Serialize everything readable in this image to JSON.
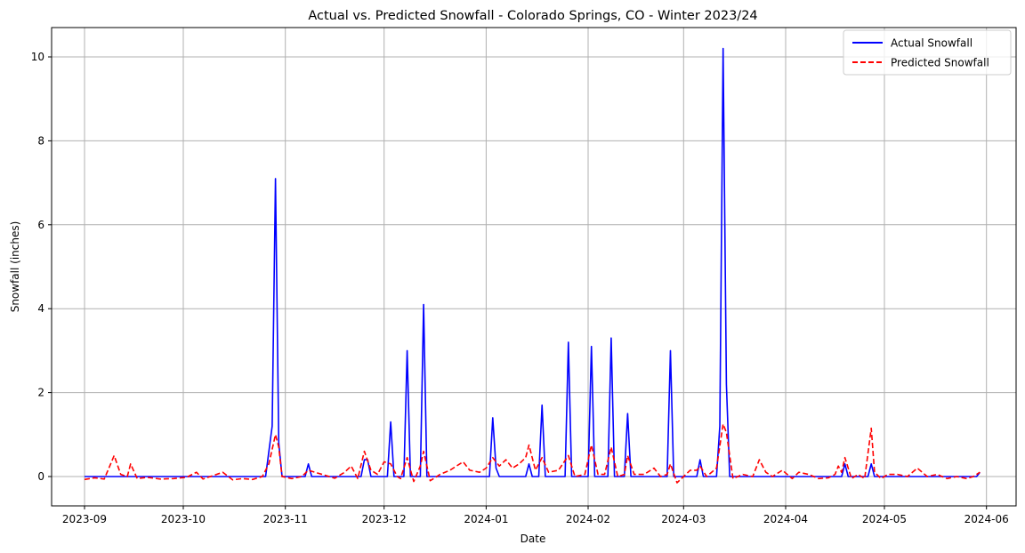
{
  "chart_data": {
    "type": "line",
    "title": "Actual vs. Predicted Snowfall - Colorado Springs, CO - Winter 2023/24",
    "xlabel": "Date",
    "ylabel": "Snowfall (inches)",
    "xlim": [
      "2023-08-22",
      "2024-06-10"
    ],
    "ylim": [
      -0.7,
      10.7
    ],
    "grid": true,
    "legend_position": "top-right",
    "x_ticks": [
      "2023-09",
      "2023-10",
      "2023-11",
      "2023-12",
      "2024-01",
      "2024-02",
      "2024-03",
      "2024-04",
      "2024-05",
      "2024-06"
    ],
    "y_ticks": [
      0,
      2,
      4,
      6,
      8,
      10
    ],
    "series": [
      {
        "name": "Actual Snowfall",
        "color": "#0000ff",
        "style": "solid",
        "points": [
          [
            "2023-09-01",
            0
          ],
          [
            "2023-10-26",
            0
          ],
          [
            "2023-10-28",
            1.2
          ],
          [
            "2023-10-29",
            7.1
          ],
          [
            "2023-10-30",
            0.8
          ],
          [
            "2023-10-31",
            0
          ],
          [
            "2023-11-07",
            0
          ],
          [
            "2023-11-08",
            0.3
          ],
          [
            "2023-11-09",
            0
          ],
          [
            "2023-11-24",
            0
          ],
          [
            "2023-11-25",
            0.4
          ],
          [
            "2023-11-26",
            0.4
          ],
          [
            "2023-11-27",
            0
          ],
          [
            "2023-12-02",
            0
          ],
          [
            "2023-12-03",
            1.3
          ],
          [
            "2023-12-04",
            0
          ],
          [
            "2023-12-07",
            0
          ],
          [
            "2023-12-08",
            3.0
          ],
          [
            "2023-12-09",
            0
          ],
          [
            "2023-12-12",
            0
          ],
          [
            "2023-12-13",
            4.1
          ],
          [
            "2023-12-14",
            0
          ],
          [
            "2024-01-02",
            0
          ],
          [
            "2024-01-03",
            1.4
          ],
          [
            "2024-01-04",
            0.2
          ],
          [
            "2024-01-05",
            0
          ],
          [
            "2024-01-13",
            0
          ],
          [
            "2024-01-14",
            0.3
          ],
          [
            "2024-01-15",
            0
          ],
          [
            "2024-01-17",
            0
          ],
          [
            "2024-01-18",
            1.7
          ],
          [
            "2024-01-19",
            0
          ],
          [
            "2024-01-25",
            0
          ],
          [
            "2024-01-26",
            3.2
          ],
          [
            "2024-01-27",
            0
          ],
          [
            "2024-02-01",
            0
          ],
          [
            "2024-02-02",
            3.1
          ],
          [
            "2024-02-03",
            0
          ],
          [
            "2024-02-07",
            0
          ],
          [
            "2024-02-08",
            3.3
          ],
          [
            "2024-02-09",
            0
          ],
          [
            "2024-02-12",
            0
          ],
          [
            "2024-02-13",
            1.5
          ],
          [
            "2024-02-14",
            0
          ],
          [
            "2024-02-25",
            0
          ],
          [
            "2024-02-26",
            3.0
          ],
          [
            "2024-02-27",
            0
          ],
          [
            "2024-03-05",
            0
          ],
          [
            "2024-03-06",
            0.4
          ],
          [
            "2024-03-07",
            0
          ],
          [
            "2024-03-11",
            0
          ],
          [
            "2024-03-12",
            1.2
          ],
          [
            "2024-03-13",
            10.2
          ],
          [
            "2024-03-14",
            2.2
          ],
          [
            "2024-03-15",
            0
          ],
          [
            "2024-04-18",
            0
          ],
          [
            "2024-04-19",
            0.3
          ],
          [
            "2024-04-20",
            0
          ],
          [
            "2024-04-26",
            0
          ],
          [
            "2024-04-27",
            0.3
          ],
          [
            "2024-04-28",
            0
          ],
          [
            "2024-05-29",
            0
          ],
          [
            "2024-05-30",
            0.1
          ]
        ]
      },
      {
        "name": "Predicted Snowfall",
        "color": "#ff0000",
        "style": "dashed",
        "points": [
          [
            "2023-09-01",
            -0.07
          ],
          [
            "2023-09-04",
            -0.03
          ],
          [
            "2023-09-07",
            -0.06
          ],
          [
            "2023-09-10",
            0.5
          ],
          [
            "2023-09-12",
            0.05
          ],
          [
            "2023-09-14",
            0.0
          ],
          [
            "2023-09-15",
            0.3
          ],
          [
            "2023-09-17",
            -0.05
          ],
          [
            "2023-09-20",
            -0.02
          ],
          [
            "2023-09-24",
            -0.06
          ],
          [
            "2023-09-28",
            -0.05
          ],
          [
            "2023-10-02",
            -0.02
          ],
          [
            "2023-10-05",
            0.1
          ],
          [
            "2023-10-07",
            -0.06
          ],
          [
            "2023-10-10",
            0.02
          ],
          [
            "2023-10-13",
            0.1
          ],
          [
            "2023-10-16",
            -0.08
          ],
          [
            "2023-10-19",
            -0.05
          ],
          [
            "2023-10-22",
            -0.07
          ],
          [
            "2023-10-25",
            0.0
          ],
          [
            "2023-10-27",
            0.3
          ],
          [
            "2023-10-29",
            1.0
          ],
          [
            "2023-10-30",
            0.7
          ],
          [
            "2023-10-31",
            0.0
          ],
          [
            "2023-11-03",
            -0.05
          ],
          [
            "2023-11-06",
            0.0
          ],
          [
            "2023-11-08",
            0.15
          ],
          [
            "2023-11-10",
            0.1
          ],
          [
            "2023-11-13",
            0.03
          ],
          [
            "2023-11-16",
            -0.04
          ],
          [
            "2023-11-19",
            0.1
          ],
          [
            "2023-11-21",
            0.25
          ],
          [
            "2023-11-23",
            -0.05
          ],
          [
            "2023-11-25",
            0.6
          ],
          [
            "2023-11-27",
            0.15
          ],
          [
            "2023-11-29",
            0.05
          ],
          [
            "2023-12-01",
            0.35
          ],
          [
            "2023-12-03",
            0.3
          ],
          [
            "2023-12-05",
            0.0
          ],
          [
            "2023-12-06",
            -0.05
          ],
          [
            "2023-12-08",
            0.45
          ],
          [
            "2023-12-10",
            -0.12
          ],
          [
            "2023-12-12",
            0.25
          ],
          [
            "2023-12-13",
            0.6
          ],
          [
            "2023-12-15",
            -0.1
          ],
          [
            "2023-12-18",
            0.05
          ],
          [
            "2023-12-21",
            0.15
          ],
          [
            "2023-12-25",
            0.35
          ],
          [
            "2023-12-27",
            0.15
          ],
          [
            "2023-12-30",
            0.1
          ],
          [
            "2024-01-01",
            0.2
          ],
          [
            "2024-01-03",
            0.45
          ],
          [
            "2024-01-05",
            0.25
          ],
          [
            "2024-01-07",
            0.4
          ],
          [
            "2024-01-09",
            0.2
          ],
          [
            "2024-01-11",
            0.3
          ],
          [
            "2024-01-13",
            0.45
          ],
          [
            "2024-01-14",
            0.75
          ],
          [
            "2024-01-16",
            0.15
          ],
          [
            "2024-01-18",
            0.45
          ],
          [
            "2024-01-20",
            0.1
          ],
          [
            "2024-01-23",
            0.15
          ],
          [
            "2024-01-26",
            0.5
          ],
          [
            "2024-01-28",
            0.0
          ],
          [
            "2024-01-31",
            0.05
          ],
          [
            "2024-02-02",
            0.75
          ],
          [
            "2024-02-04",
            0.05
          ],
          [
            "2024-02-06",
            0.05
          ],
          [
            "2024-02-08",
            0.7
          ],
          [
            "2024-02-10",
            0.0
          ],
          [
            "2024-02-12",
            0.05
          ],
          [
            "2024-02-13",
            0.5
          ],
          [
            "2024-02-15",
            0.05
          ],
          [
            "2024-02-18",
            0.05
          ],
          [
            "2024-02-21",
            0.2
          ],
          [
            "2024-02-23",
            0.0
          ],
          [
            "2024-02-25",
            0.05
          ],
          [
            "2024-02-26",
            0.3
          ],
          [
            "2024-02-28",
            -0.15
          ],
          [
            "2024-03-01",
            0.0
          ],
          [
            "2024-03-03",
            0.15
          ],
          [
            "2024-03-05",
            0.15
          ],
          [
            "2024-03-06",
            0.25
          ],
          [
            "2024-03-08",
            0.0
          ],
          [
            "2024-03-11",
            0.2
          ],
          [
            "2024-03-13",
            1.25
          ],
          [
            "2024-03-14",
            1.05
          ],
          [
            "2024-03-16",
            -0.05
          ],
          [
            "2024-03-19",
            0.05
          ],
          [
            "2024-03-22",
            0.0
          ],
          [
            "2024-03-24",
            0.4
          ],
          [
            "2024-03-26",
            0.1
          ],
          [
            "2024-03-28",
            0.0
          ],
          [
            "2024-03-31",
            0.15
          ],
          [
            "2024-04-03",
            -0.05
          ],
          [
            "2024-04-05",
            0.1
          ],
          [
            "2024-04-08",
            0.05
          ],
          [
            "2024-04-11",
            -0.05
          ],
          [
            "2024-04-14",
            -0.03
          ],
          [
            "2024-04-16",
            0.05
          ],
          [
            "2024-04-17",
            0.25
          ],
          [
            "2024-04-18",
            0.1
          ],
          [
            "2024-04-19",
            0.45
          ],
          [
            "2024-04-21",
            -0.05
          ],
          [
            "2024-04-23",
            0.05
          ],
          [
            "2024-04-25",
            -0.05
          ],
          [
            "2024-04-27",
            1.15
          ],
          [
            "2024-04-28",
            0.1
          ],
          [
            "2024-04-30",
            -0.05
          ],
          [
            "2024-05-02",
            0.05
          ],
          [
            "2024-05-05",
            0.05
          ],
          [
            "2024-05-08",
            0.0
          ],
          [
            "2024-05-11",
            0.2
          ],
          [
            "2024-05-14",
            0.0
          ],
          [
            "2024-05-17",
            0.05
          ],
          [
            "2024-05-20",
            -0.05
          ],
          [
            "2024-05-23",
            0.0
          ],
          [
            "2024-05-26",
            -0.05
          ],
          [
            "2024-05-28",
            0.0
          ],
          [
            "2024-05-30",
            0.1
          ]
        ]
      }
    ]
  }
}
